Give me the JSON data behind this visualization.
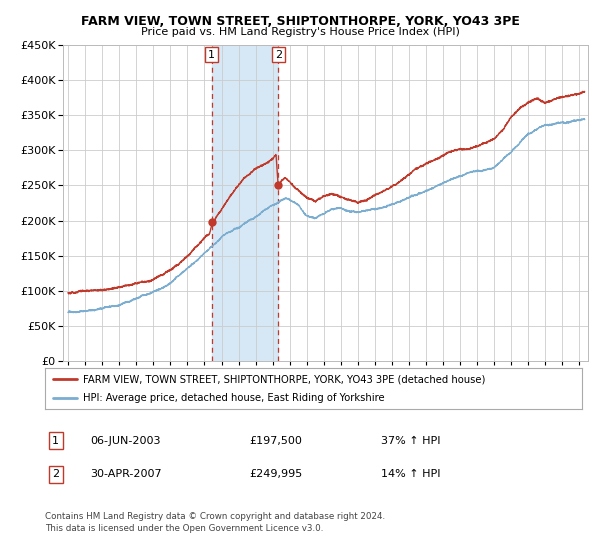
{
  "title": "FARM VIEW, TOWN STREET, SHIPTONTHORPE, YORK, YO43 3PE",
  "subtitle": "Price paid vs. HM Land Registry's House Price Index (HPI)",
  "legend_line1": "FARM VIEW, TOWN STREET, SHIPTONTHORPE, YORK, YO43 3PE (detached house)",
  "legend_line2": "HPI: Average price, detached house, East Riding of Yorkshire",
  "table_row1": [
    "1",
    "06-JUN-2003",
    "£197,500",
    "37% ↑ HPI"
  ],
  "table_row2": [
    "2",
    "30-APR-2007",
    "£249,995",
    "14% ↑ HPI"
  ],
  "footnote": "Contains HM Land Registry data © Crown copyright and database right 2024.\nThis data is licensed under the Open Government Licence v3.0.",
  "sale1_date": 2003.42,
  "sale2_date": 2007.33,
  "sale1_price": 197500,
  "sale2_price": 249995,
  "hpi_color": "#7aadcf",
  "price_color": "#c0392b",
  "shade_color": "#d6e8f5",
  "grid_color": "#cccccc",
  "ylim": [
    0,
    450000
  ],
  "xlim_start": 1994.7,
  "xlim_end": 2025.5,
  "yticks": [
    0,
    50000,
    100000,
    150000,
    200000,
    250000,
    300000,
    350000,
    400000,
    450000
  ]
}
